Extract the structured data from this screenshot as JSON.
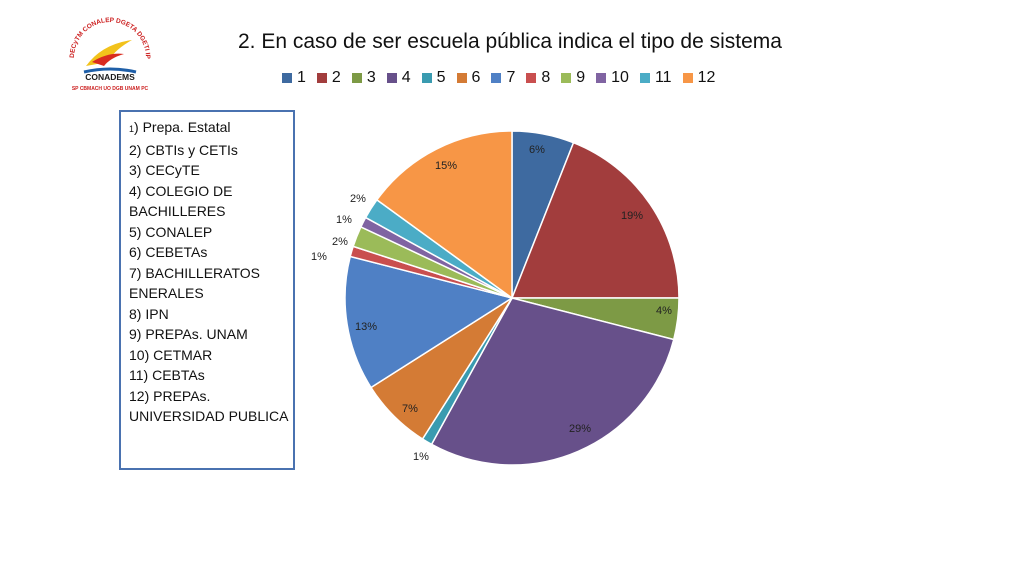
{
  "header": {
    "title": "2. En caso de ser escuela pública indica el tipo de sistema"
  },
  "logo": {
    "ring_text": "DECyTM CONALEP DGETA DGETI IPN",
    "bottom_text": "SP CBMACH UO DGB UNAM PC",
    "center_text": "CONADEMS"
  },
  "key_box": {
    "lines": [
      "1) Prepa. Estatal",
      "2) CBTIs y CETIs",
      "3) CECyTE",
      "4) COLEGIO DE",
      "BACHILLERES",
      "5) CONALEP",
      "6) CEBETAs",
      "7) BACHILLERATOS",
      "ENERALES",
      "8) IPN",
      "9) PREPAs. UNAM",
      "10) CETMAR",
      "11) CEBTAs",
      "12) PREPAs.",
      "UNIVERSIDAD PUBLICA"
    ]
  },
  "chart_data": {
    "type": "pie",
    "title": "2. En caso de ser escuela pública indica el tipo de sistema",
    "legend_position": "top",
    "categories": [
      "1",
      "2",
      "3",
      "4",
      "5",
      "6",
      "7",
      "8",
      "9",
      "10",
      "11",
      "12"
    ],
    "values": [
      6,
      19,
      4,
      29,
      1,
      7,
      13,
      1,
      2,
      1,
      2,
      15
    ],
    "labels": [
      "6%",
      "19%",
      "4%",
      "29%",
      "1%",
      "7%",
      "13%",
      "1%",
      "2%",
      "1%",
      "2%",
      "15%"
    ],
    "colors": [
      "#3e6aa0",
      "#a23d3d",
      "#7d9a45",
      "#67508a",
      "#3a9bb0",
      "#d47b35",
      "#4f80c5",
      "#c94f4f",
      "#9bbb59",
      "#8064a2",
      "#4bacc6",
      "#f79646"
    ]
  }
}
